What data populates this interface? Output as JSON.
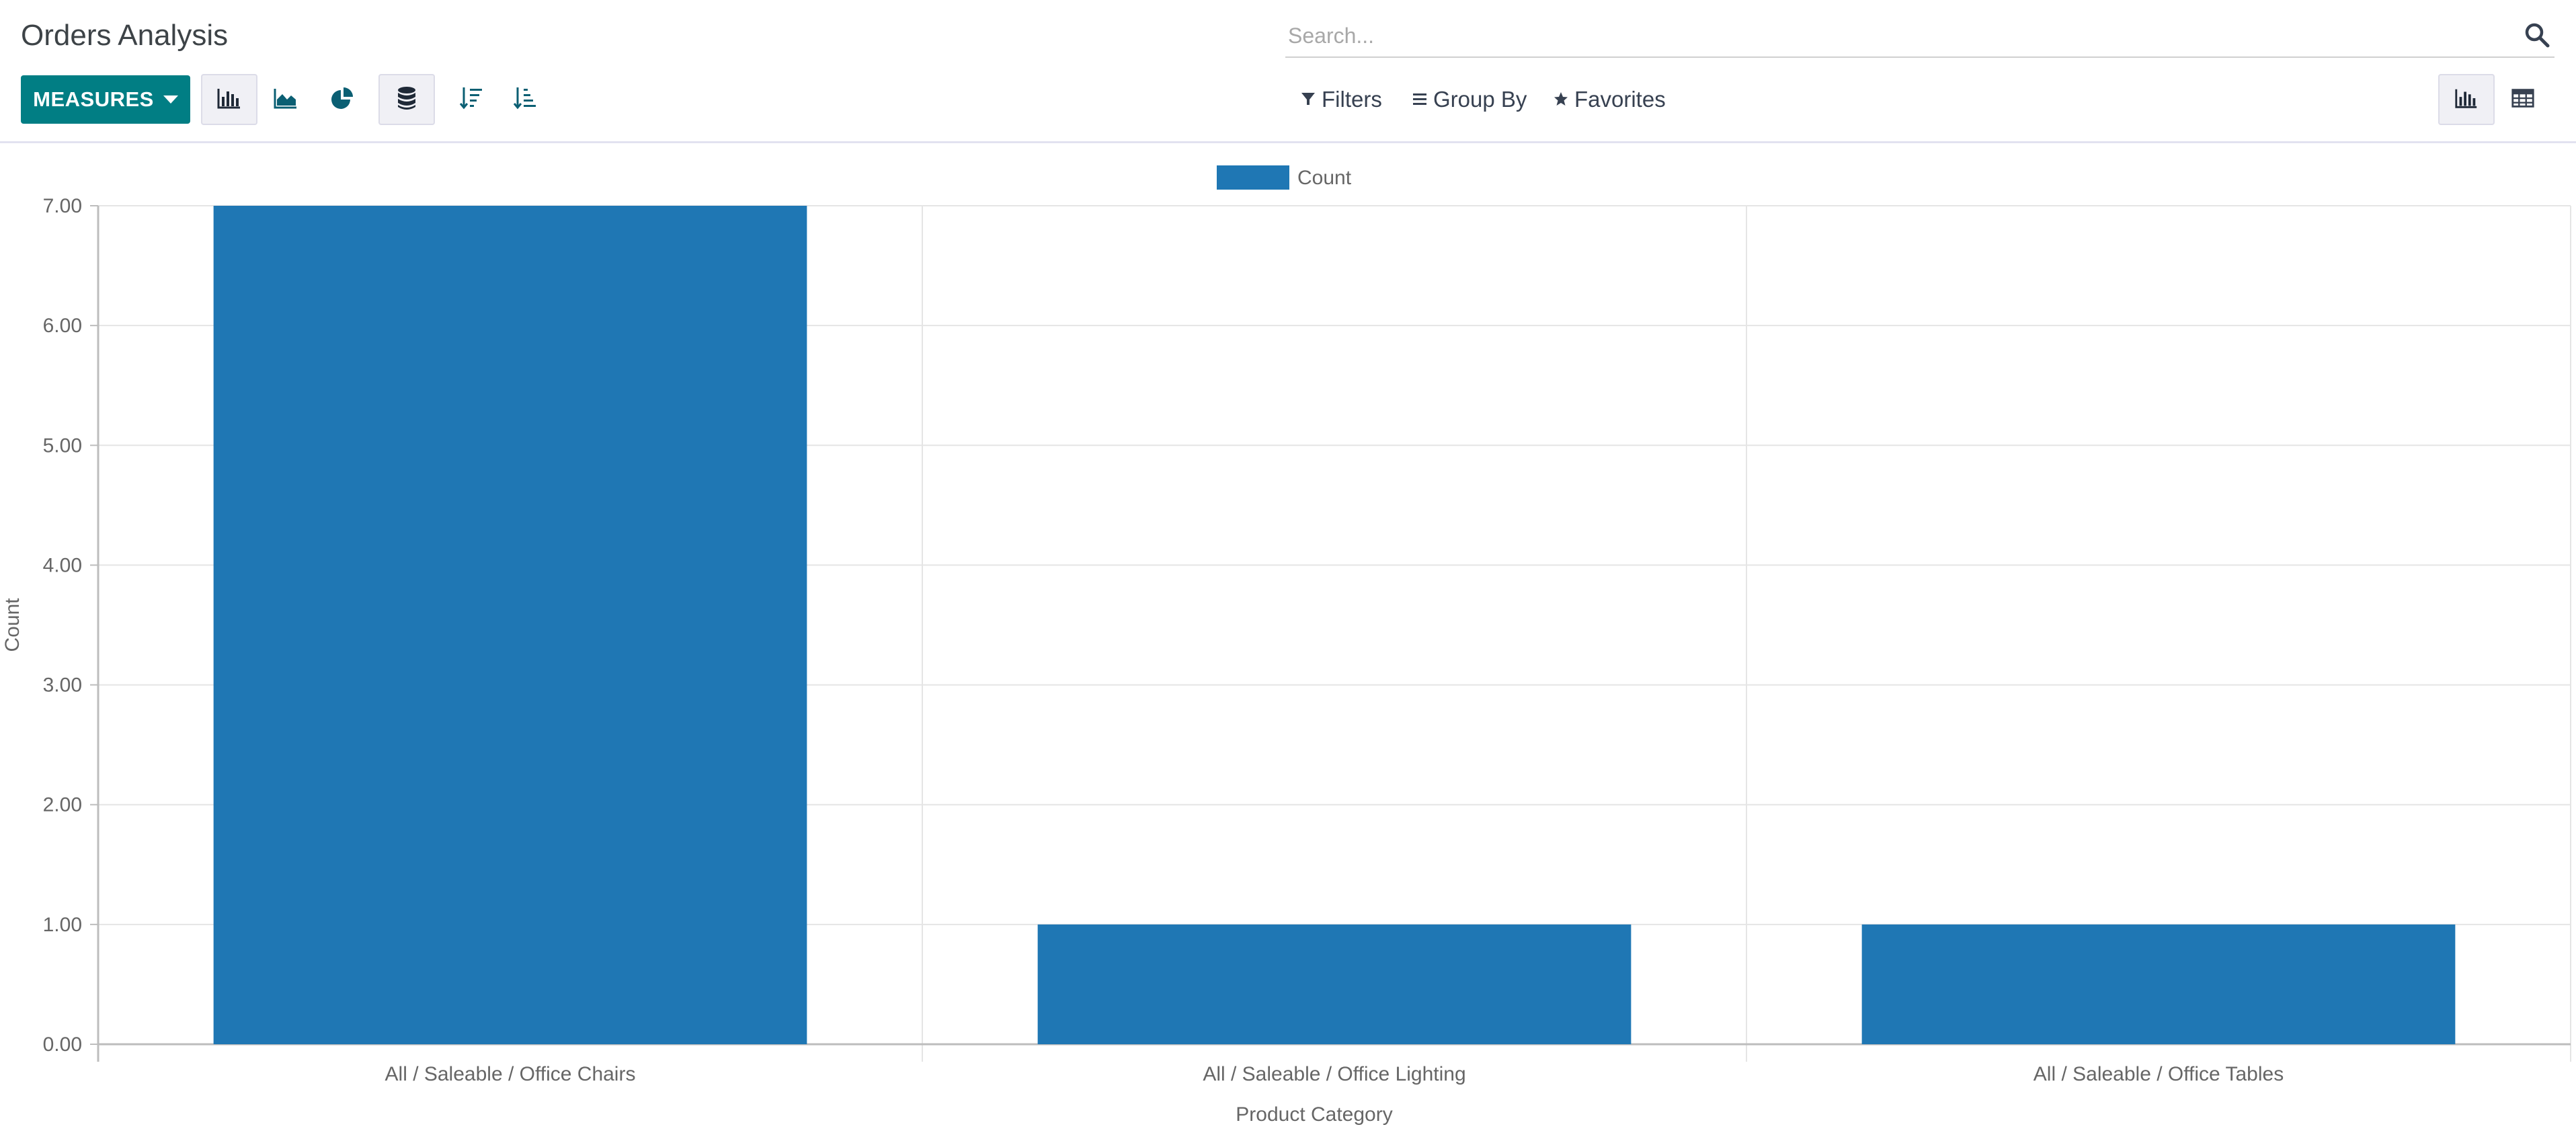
{
  "header": {
    "title": "Orders Analysis",
    "search_placeholder": "Search..."
  },
  "toolbar": {
    "measures_label": "MEASURES",
    "tools": [
      {
        "icon": "bar-chart-icon",
        "active": true
      },
      {
        "icon": "area-chart-icon",
        "active": false
      },
      {
        "icon": "pie-chart-icon",
        "active": false
      },
      {
        "icon": "stacked-database-icon",
        "active": true
      },
      {
        "icon": "sort-descending-icon",
        "active": false
      },
      {
        "icon": "sort-ascending-icon",
        "active": false
      }
    ]
  },
  "search_options": {
    "filters_label": "Filters",
    "group_by_label": "Group By",
    "favorites_label": "Favorites"
  },
  "views": [
    {
      "icon": "bar-chart-view-icon",
      "active": true
    },
    {
      "icon": "table-view-icon",
      "active": false
    }
  ],
  "colors": {
    "accent": "#017e84",
    "bar": "#1f77b4",
    "grid": "#e5e5e5",
    "axis": "#bdbdbd"
  },
  "chart_data": {
    "type": "bar",
    "categories": [
      "All / Saleable / Office Chairs",
      "All / Saleable / Office Lighting",
      "All / Saleable / Office Tables"
    ],
    "series": [
      {
        "name": "Count",
        "values": [
          7,
          1,
          1
        ]
      }
    ],
    "xlabel": "Product Category",
    "ylabel": "Count",
    "ylim": [
      0,
      7
    ],
    "yticks": [
      "0.00",
      "1.00",
      "2.00",
      "3.00",
      "4.00",
      "5.00",
      "6.00",
      "7.00"
    ],
    "grid": true,
    "legend": "top-center"
  }
}
